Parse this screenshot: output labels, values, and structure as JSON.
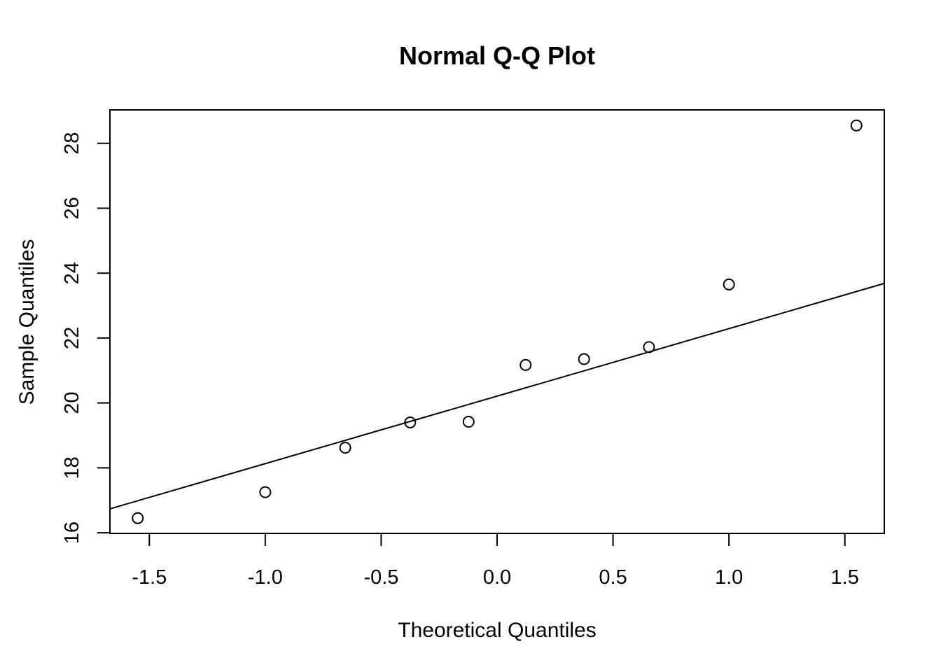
{
  "chart_data": {
    "type": "scatter",
    "title": "Normal Q-Q Plot",
    "xlabel": "Theoretical Quantiles",
    "ylabel": "Sample Quantiles",
    "xlim": [
      -1.67,
      1.67
    ],
    "ylim": [
      15.98,
      29.03
    ],
    "x_ticks": [
      -1.5,
      -1.0,
      -0.5,
      0.0,
      0.5,
      1.0,
      1.5
    ],
    "x_tick_labels": [
      "-1.5",
      "-1.0",
      "-0.5",
      "0.0",
      "0.5",
      "1.0",
      "1.5"
    ],
    "y_ticks": [
      16,
      18,
      20,
      22,
      24,
      26,
      28
    ],
    "y_tick_labels": [
      "16",
      "18",
      "20",
      "22",
      "24",
      "26",
      "28"
    ],
    "grid": false,
    "marker": "open-circle",
    "points": [
      {
        "x": -1.55,
        "y": 16.45
      },
      {
        "x": -1.0,
        "y": 17.25
      },
      {
        "x": -0.655,
        "y": 18.62
      },
      {
        "x": -0.375,
        "y": 19.4
      },
      {
        "x": -0.123,
        "y": 19.42
      },
      {
        "x": 0.123,
        "y": 21.17
      },
      {
        "x": 0.375,
        "y": 21.35
      },
      {
        "x": 0.655,
        "y": 21.72
      },
      {
        "x": 1.0,
        "y": 23.65
      },
      {
        "x": 1.55,
        "y": 28.55
      }
    ],
    "reference_line": {
      "intercept": 20.21,
      "slope": 2.08
    }
  }
}
